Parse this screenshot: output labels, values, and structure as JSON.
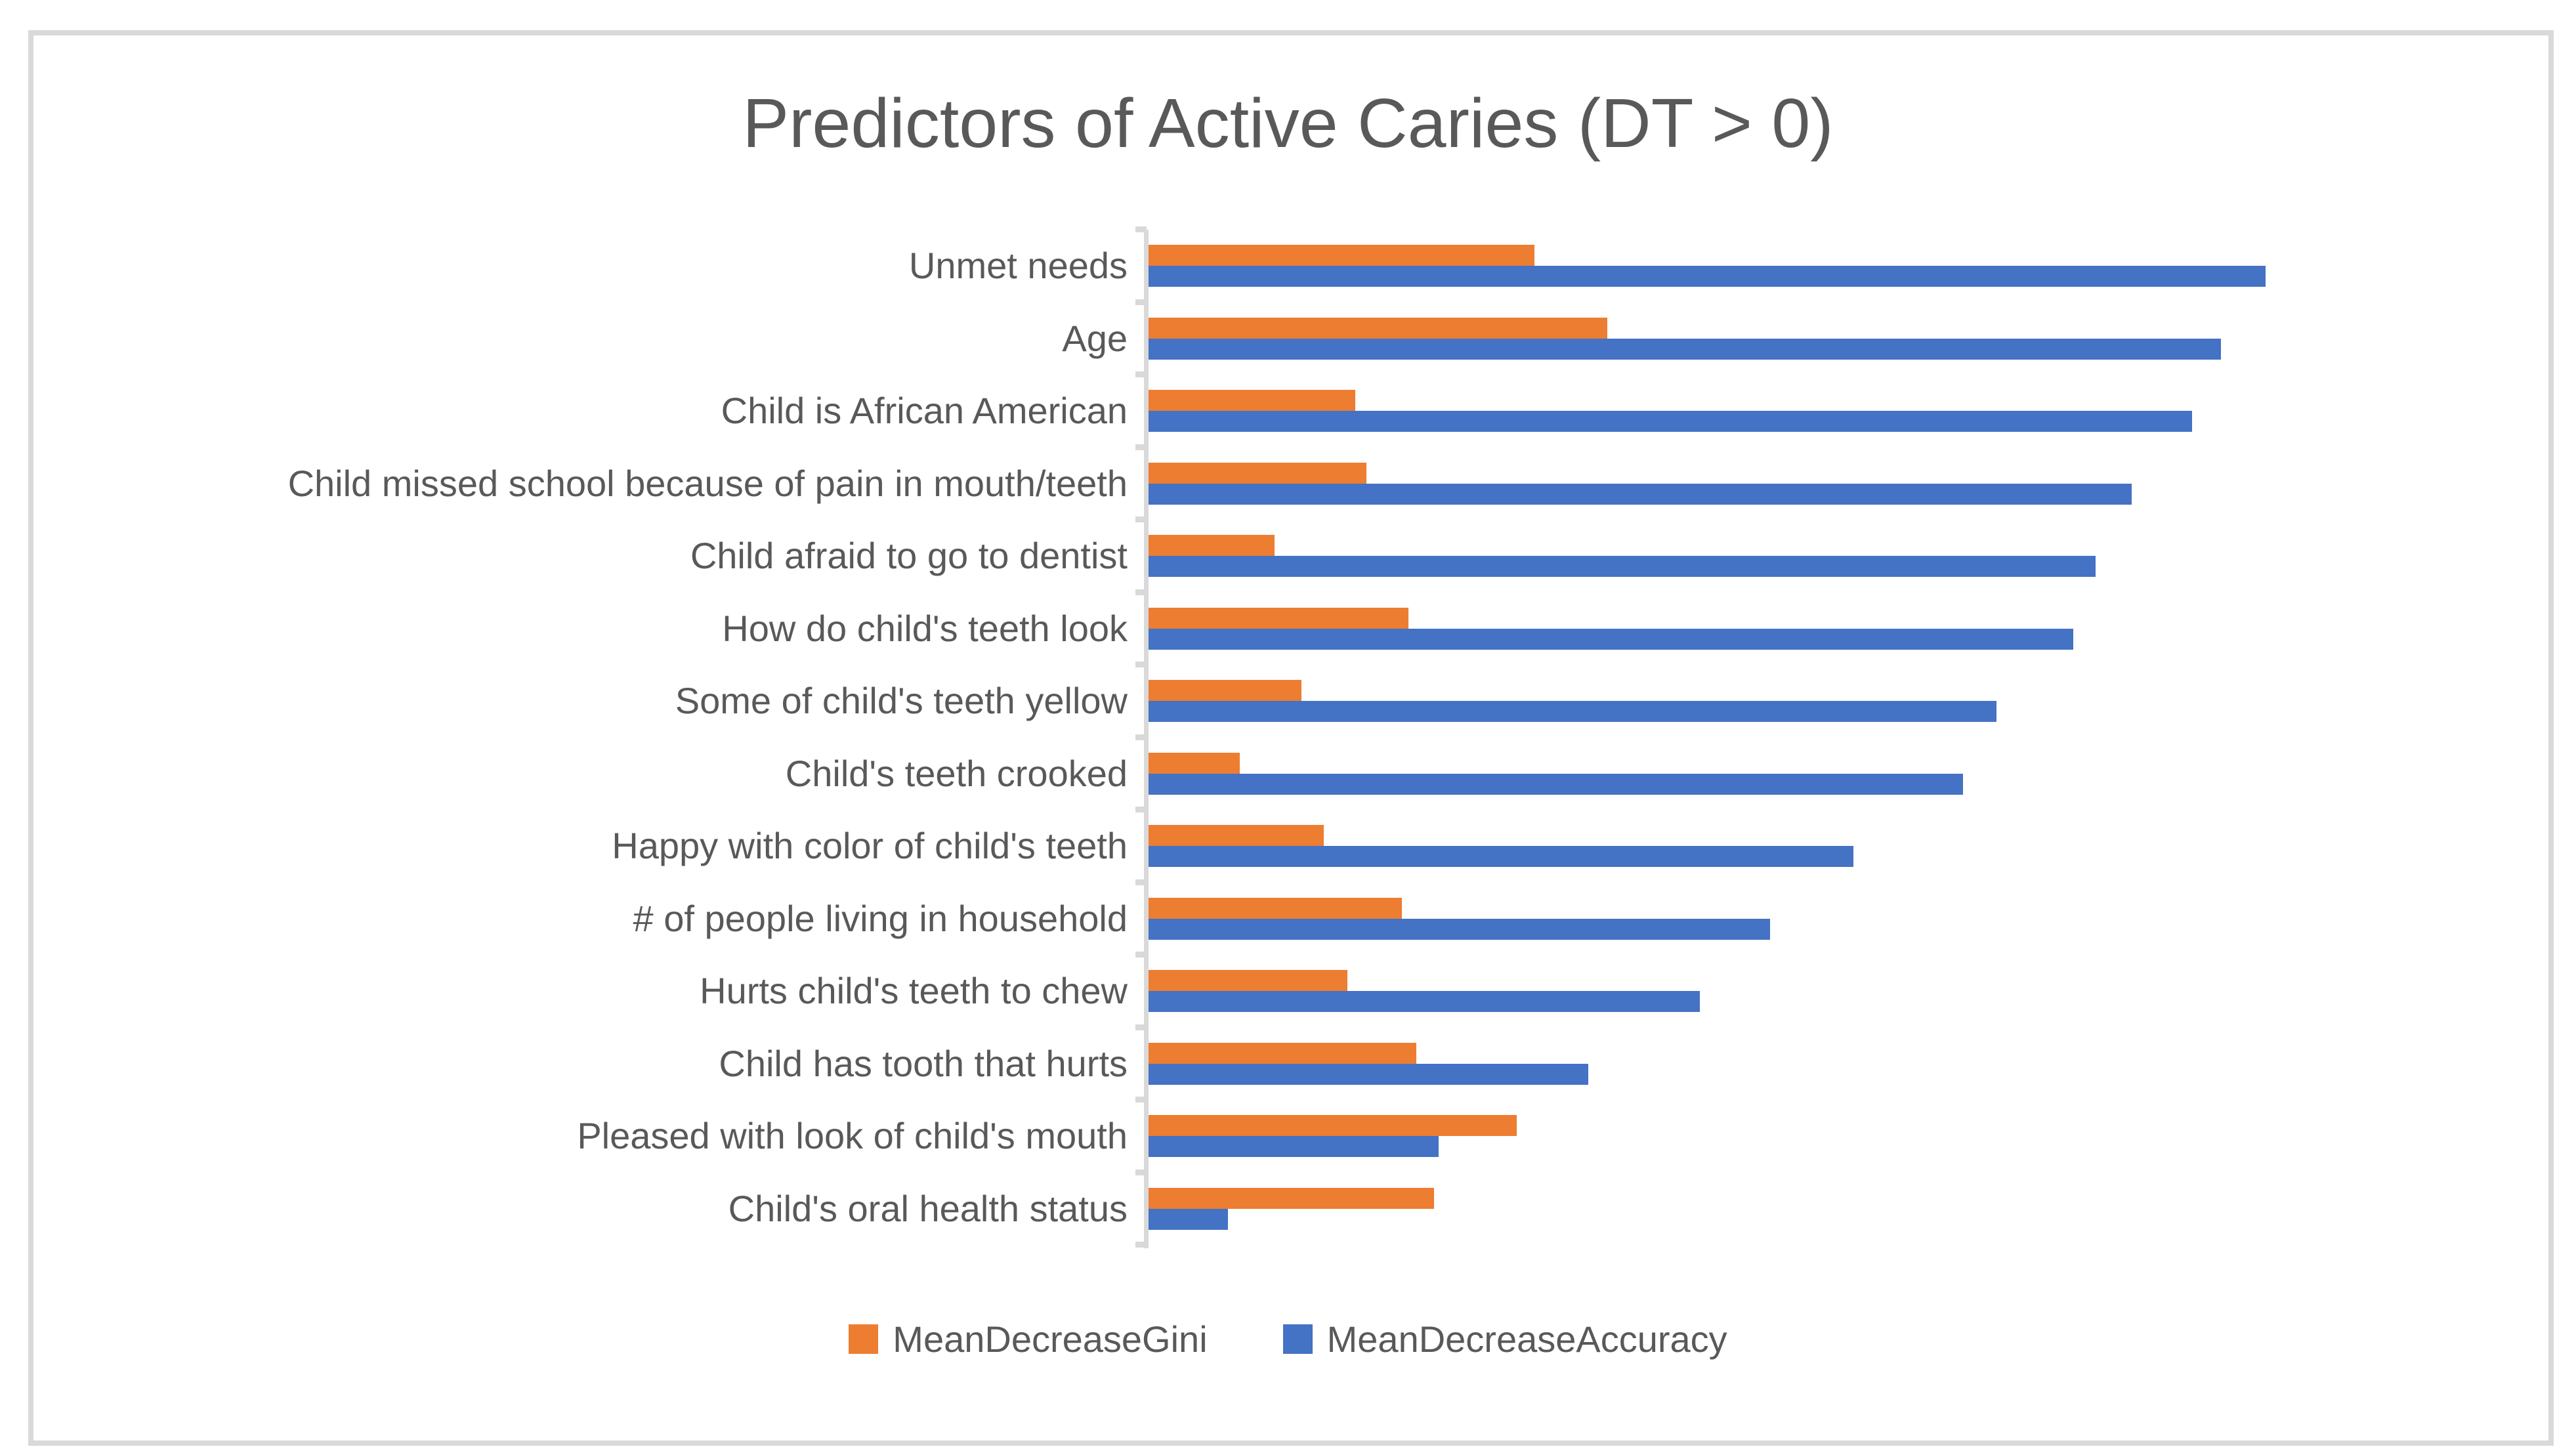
{
  "figure": {
    "frame_border_color": "#D9D9D9",
    "background_color": "#FFFFFF",
    "text_color": "#595959"
  },
  "chart_data": {
    "type": "bar",
    "orientation": "horizontal",
    "title": "Predictors of Active Caries (DT > 0)",
    "xlabel": "",
    "ylabel": "",
    "grid": false,
    "value_axis": {
      "tick_labels_visible": false,
      "units": "relative variable importance (value axis unlabeled in source)",
      "xlim": [
        0,
        12.6
      ]
    },
    "category_axis": {
      "line_color": "#D9D9D9",
      "tick_color": "#D9D9D9"
    },
    "legend": {
      "position": "bottom",
      "entries": [
        "MeanDecreaseGini",
        "MeanDecreaseAccuracy"
      ]
    },
    "categories": [
      "Unmet needs",
      "Age",
      "Child is African American",
      "Child missed school because of pain in mouth/teeth",
      "Child afraid to go to dentist",
      "How do child's teeth look",
      "Some of child's teeth yellow",
      "Child's teeth crooked",
      "Happy with color of child's teeth",
      "# of people living in household",
      "Hurts child's teeth to chew",
      "Child has tooth that hurts",
      "Pleased with look of child's mouth",
      "Child's oral health status"
    ],
    "series": [
      {
        "name": "MeanDecreaseGini",
        "color": "#ED7D31",
        "values": [
          3.46,
          4.11,
          1.85,
          1.95,
          1.13,
          2.33,
          1.37,
          0.82,
          1.57,
          2.27,
          1.78,
          2.4,
          3.3,
          2.56
        ]
      },
      {
        "name": "MeanDecreaseAccuracy",
        "color": "#4472C4",
        "values": [
          10.01,
          9.61,
          9.35,
          8.81,
          8.49,
          8.29,
          7.6,
          7.3,
          6.32,
          5.57,
          4.94,
          3.94,
          2.6,
          0.71
        ]
      }
    ],
    "series_stack_order_note": "In each category the Gini (orange) bar is drawn above the Accuracy (blue) bar"
  }
}
